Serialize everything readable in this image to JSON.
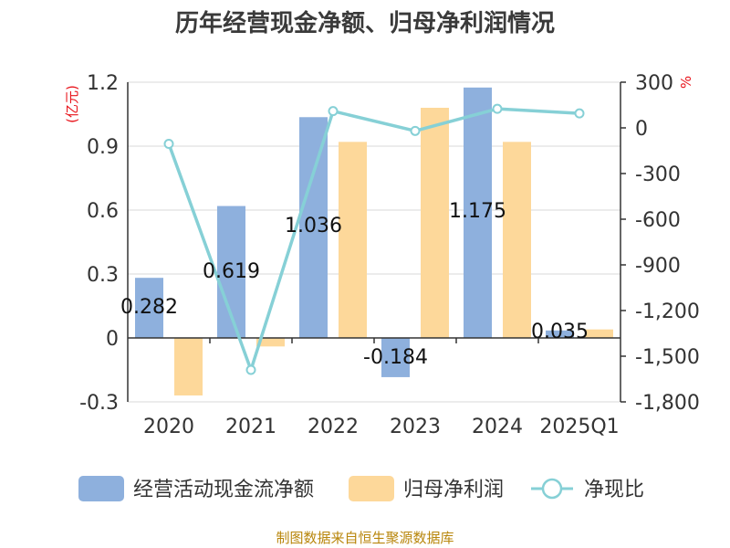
{
  "chart_data": {
    "type": "bar+line",
    "title": "历年经营现金净额、归母净利润情况",
    "categories": [
      "2020",
      "2021",
      "2022",
      "2023",
      "2024",
      "2025Q1"
    ],
    "series": [
      {
        "name": "经营活动现金流净额",
        "type": "bar",
        "axis": "left",
        "values": [
          0.282,
          0.619,
          1.036,
          -0.184,
          1.175,
          0.035
        ]
      },
      {
        "name": "归母净利润",
        "type": "bar",
        "axis": "left",
        "values": [
          -0.27,
          -0.04,
          0.92,
          1.08,
          0.92,
          0.04
        ]
      },
      {
        "name": "净现比",
        "type": "line",
        "axis": "right",
        "values": [
          -105,
          -1590,
          110,
          -20,
          125,
          95
        ]
      }
    ],
    "data_labels": [
      "0.282",
      "0.619",
      "1.036",
      "-0.184",
      "1.175",
      "0.035"
    ],
    "left_axis": {
      "unit": "(亿元)",
      "ylim": [
        -0.3,
        1.2
      ],
      "ticks": [
        "-0.3",
        "0",
        "0.3",
        "0.6",
        "0.9",
        "1.2"
      ]
    },
    "right_axis": {
      "unit": "%",
      "ylim": [
        -1800,
        300
      ],
      "ticks": [
        "-1,800",
        "-1,500",
        "-1,200",
        "-900",
        "-600",
        "-300",
        "0",
        "300"
      ]
    },
    "legend": {
      "position": "bottom"
    },
    "source": "制图数据来自恒生聚源数据库",
    "colors": {
      "bar1": "#8eb0dd",
      "bar2": "#fdd89a",
      "line": "#86d0d6",
      "grid": "#d9d9d9",
      "axis": "#333333"
    }
  }
}
